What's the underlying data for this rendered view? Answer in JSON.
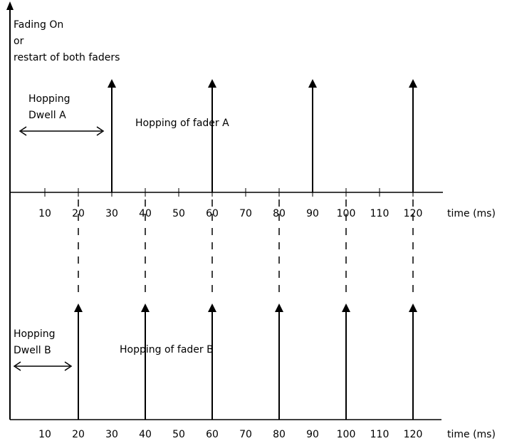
{
  "header": {
    "line1": "Fading On",
    "line2": "or",
    "line3": "restart of both faders"
  },
  "dwell_a": {
    "line1": "Hopping",
    "line2": "Dwell A"
  },
  "dwell_b": {
    "line1": "Hopping",
    "line2": "Dwell B"
  },
  "fader_a_label": "Hopping of fader A",
  "fader_b_label": "Hopping of fader B",
  "axis_unit": "time (ms)",
  "ticks": [
    "10",
    "20",
    "30",
    "40",
    "50",
    "60",
    "70",
    "80",
    "90",
    "100",
    "110",
    "120"
  ],
  "ticks_values": [
    10,
    20,
    30,
    40,
    50,
    60,
    70,
    80,
    90,
    100,
    110,
    120
  ],
  "fader_a_hops": [
    30,
    60,
    90,
    120
  ],
  "fader_b_hops": [
    20,
    40,
    60,
    80,
    100,
    120
  ],
  "dashed_links": [
    20,
    40,
    60,
    80,
    100,
    120
  ]
}
